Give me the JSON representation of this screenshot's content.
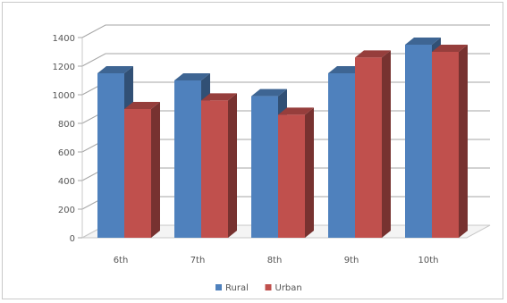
{
  "chart_data": {
    "type": "bar",
    "title": "",
    "xlabel": "",
    "ylabel": "",
    "categories": [
      "6th",
      "7th",
      "8th",
      "9th",
      "10th"
    ],
    "series": [
      {
        "name": "Rural",
        "values": [
          1150,
          1100,
          990,
          1150,
          1350
        ],
        "color": "#4f81bd"
      },
      {
        "name": "Urban",
        "values": [
          900,
          960,
          860,
          1260,
          1300
        ],
        "color": "#c0504d"
      }
    ],
    "ylim": [
      0,
      1400
    ],
    "yticks": [
      0,
      200,
      400,
      600,
      800,
      1000,
      1200,
      1400
    ],
    "grid": true,
    "legend_position": "bottom",
    "style": "3d-clustered-column"
  }
}
